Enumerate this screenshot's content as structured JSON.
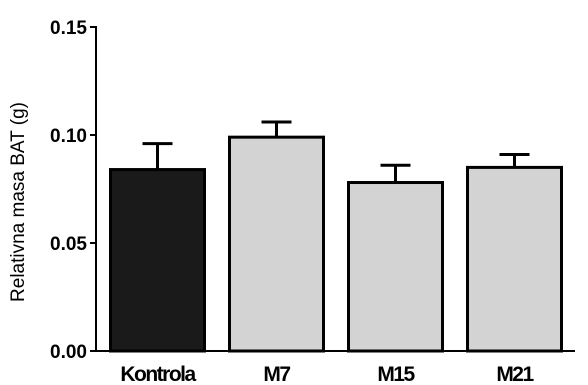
{
  "chart_data": {
    "type": "bar",
    "categories": [
      "Kontrola",
      "M7",
      "M15",
      "M21"
    ],
    "values": [
      0.084,
      0.099,
      0.078,
      0.085
    ],
    "errors": [
      0.012,
      0.007,
      0.008,
      0.006
    ],
    "colors": [
      "#1a1a1a",
      "#d3d3d3",
      "#d3d3d3",
      "#d3d3d3"
    ],
    "edge_color": "#000000",
    "error_bar_direction": "up",
    "title": "",
    "xlabel": "",
    "ylabel": "Relativna masa BAT (g)",
    "ylim": [
      0,
      0.15
    ],
    "yticks": [
      {
        "value": 0.0,
        "label": "0.00"
      },
      {
        "value": 0.05,
        "label": "0.05"
      },
      {
        "value": 0.1,
        "label": "0.10"
      },
      {
        "value": 0.15,
        "label": "0.15"
      }
    ],
    "grid": false,
    "legend": "none"
  }
}
